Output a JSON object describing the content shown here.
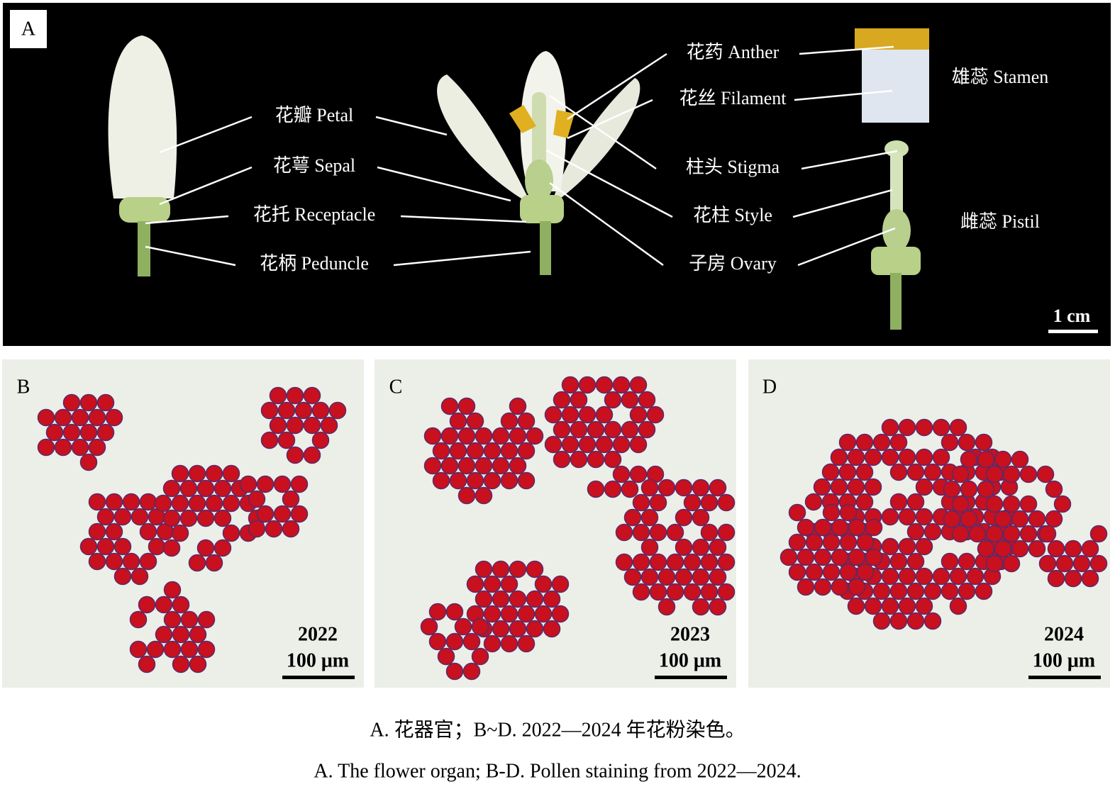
{
  "panel_a": {
    "label": "A",
    "labels": [
      "花瓣 Petal",
      "花萼 Sepal",
      "花托 Receptacle",
      "花柄 Peduncle",
      "花药 Anther",
      "花丝 Filament",
      "柱头 Stigma",
      "花柱 Style",
      "子房 Ovary",
      "雄蕊 Stamen",
      "雌蕊 Pistil"
    ],
    "scale_bar": "1 cm"
  },
  "panels": [
    {
      "label": "B",
      "year": "2022",
      "scale_bar": "100 μm"
    },
    {
      "label": "C",
      "year": "2023",
      "scale_bar": "100 μm"
    },
    {
      "label": "D",
      "year": "2024",
      "scale_bar": "100 μm"
    }
  ],
  "caption": {
    "zh": "A. 花器官；B~D. 2022—2024 年花粉染色。",
    "en": "A. The flower organ; B-D. Pollen staining from 2022—2024."
  }
}
